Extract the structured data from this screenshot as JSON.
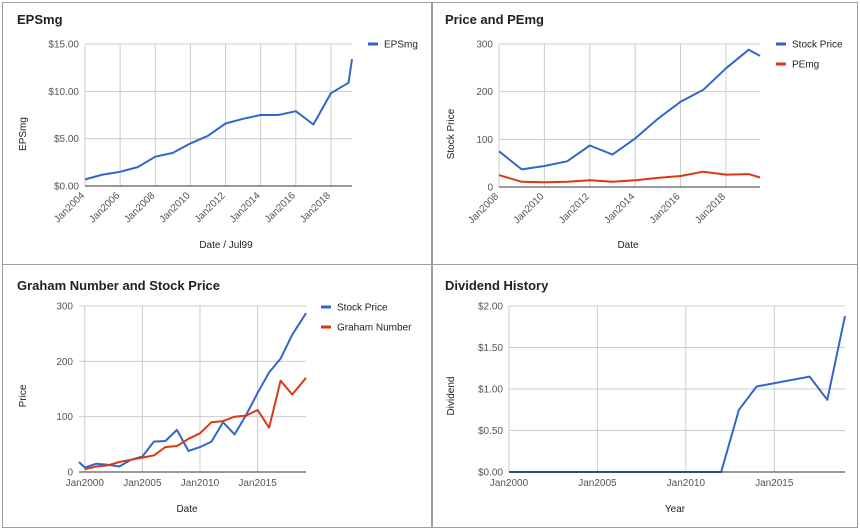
{
  "colors": {
    "blue": "#3366cc",
    "red": "#dc3912",
    "grid": "#cccccc",
    "axis": "#333333"
  },
  "chart_data": [
    {
      "type": "line",
      "title": "EPSmg",
      "xlabel": "Date / Jul99",
      "ylabel": "EPSmg",
      "x_tick_labels": [
        "Jan2004",
        "Jan2006",
        "Jan2008",
        "Jan2010",
        "Jan2012",
        "Jan2014",
        "Jan2016",
        "Jan2018"
      ],
      "y_tick_labels": [
        "$0.00",
        "$5.00",
        "$10.00",
        "$15.00"
      ],
      "xlim": [
        2004,
        2019.2
      ],
      "ylim": [
        0,
        15
      ],
      "legend": "right",
      "series": [
        {
          "name": "EPSmg",
          "color": "#3366cc",
          "x": [
            2004,
            2005,
            2006,
            2007,
            2008,
            2009,
            2010,
            2011,
            2012,
            2013,
            2014,
            2015,
            2016,
            2017,
            2018,
            2019,
            2019.2
          ],
          "y": [
            0.7,
            1.2,
            1.5,
            2.0,
            3.1,
            3.5,
            4.5,
            5.3,
            6.6,
            7.1,
            7.5,
            7.5,
            7.9,
            6.5,
            9.8,
            10.9,
            13.4
          ]
        }
      ]
    },
    {
      "type": "line",
      "title": "Price and PEmg",
      "xlabel": "Date",
      "ylabel": "Stock Price",
      "x_tick_labels": [
        "Jan2008",
        "Jan2010",
        "Jan2012",
        "Jan2014",
        "Jan2016",
        "Jan2018"
      ],
      "y_tick_labels": [
        "0",
        "100",
        "200",
        "300"
      ],
      "xlim": [
        2008,
        2019.5
      ],
      "ylim": [
        0,
        300
      ],
      "legend": "right",
      "series": [
        {
          "name": "Stock Price",
          "color": "#3366cc",
          "x": [
            2008,
            2009,
            2010,
            2011,
            2012,
            2013,
            2014,
            2015,
            2016,
            2017,
            2018,
            2019,
            2019.5
          ],
          "y": [
            75,
            37,
            44,
            54,
            87,
            68,
            102,
            143,
            179,
            204,
            249,
            288,
            275
          ]
        },
        {
          "name": "PEmg",
          "color": "#dc3912",
          "x": [
            2008,
            2009,
            2010,
            2011,
            2012,
            2013,
            2014,
            2015,
            2016,
            2017,
            2018,
            2019,
            2019.5
          ],
          "y": [
            25,
            11,
            10,
            11,
            14,
            11,
            14,
            19,
            23,
            32,
            26,
            27,
            20
          ]
        }
      ]
    },
    {
      "type": "line",
      "title": "Graham Number and Stock Price",
      "xlabel": "Date",
      "ylabel": "Price",
      "x_tick_labels": [
        "Jan2000",
        "Jan2005",
        "Jan2010",
        "Jan2015"
      ],
      "y_tick_labels": [
        "0",
        "100",
        "200",
        "300"
      ],
      "xlim": [
        1999.5,
        2019.2
      ],
      "ylim": [
        0,
        300
      ],
      "legend": "right",
      "series": [
        {
          "name": "Stock Price",
          "color": "#3366cc",
          "x": [
            1999.5,
            2000,
            2001,
            2002,
            2003,
            2004,
            2005,
            2006,
            2007,
            2008,
            2009,
            2010,
            2011,
            2012,
            2013,
            2014,
            2015,
            2016,
            2017,
            2018,
            2019.2
          ],
          "y": [
            18,
            8,
            15,
            13,
            10,
            22,
            28,
            55,
            56,
            76,
            38,
            45,
            55,
            90,
            68,
            103,
            143,
            180,
            205,
            248,
            287
          ]
        },
        {
          "name": "Graham Number",
          "color": "#dc3912",
          "x": [
            2000,
            2001,
            2002,
            2003,
            2004,
            2005,
            2006,
            2007,
            2008,
            2009,
            2010,
            2011,
            2012,
            2013,
            2014,
            2015,
            2016,
            2017,
            2018,
            2019.2
          ],
          "y": [
            5,
            10,
            12,
            18,
            22,
            26,
            30,
            45,
            47,
            60,
            70,
            90,
            92,
            100,
            102,
            112,
            80,
            165,
            140,
            170
          ]
        }
      ]
    },
    {
      "type": "line",
      "title": "Dividend History",
      "xlabel": "Year",
      "ylabel": "Dividend",
      "x_tick_labels": [
        "Jan2000",
        "Jan2005",
        "Jan2010",
        "Jan2015"
      ],
      "y_tick_labels": [
        "$0.00",
        "$0.50",
        "$1.00",
        "$1.50",
        "$2.00"
      ],
      "xlim": [
        2000,
        2019
      ],
      "ylim": [
        0,
        2
      ],
      "series": [
        {
          "name": "",
          "color": "#3366cc",
          "x": [
            2000,
            2012,
            2013,
            2014,
            2017,
            2018,
            2019
          ],
          "y": [
            0,
            0,
            0.75,
            1.03,
            1.15,
            0.87,
            1.88
          ]
        }
      ]
    }
  ]
}
